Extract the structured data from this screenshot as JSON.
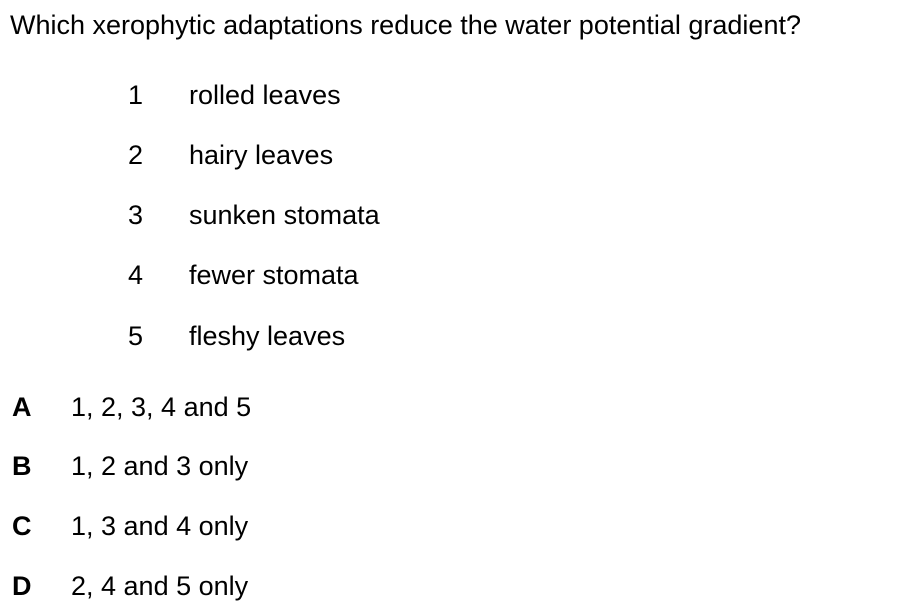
{
  "question": {
    "text": "Which xerophytic adaptations reduce the water potential gradient?"
  },
  "statements": [
    {
      "number": "1",
      "text": "rolled leaves"
    },
    {
      "number": "2",
      "text": "hairy leaves"
    },
    {
      "number": "3",
      "text": "sunken stomata"
    },
    {
      "number": "4",
      "text": "fewer stomata"
    },
    {
      "number": "5",
      "text": "fleshy leaves"
    }
  ],
  "options": [
    {
      "letter": "A",
      "text": "1, 2, 3, 4 and 5"
    },
    {
      "letter": "B",
      "text": "1, 2 and 3 only"
    },
    {
      "letter": "C",
      "text": "1, 3 and 4 only"
    },
    {
      "letter": "D",
      "text": "2, 4 and 5 only"
    }
  ]
}
